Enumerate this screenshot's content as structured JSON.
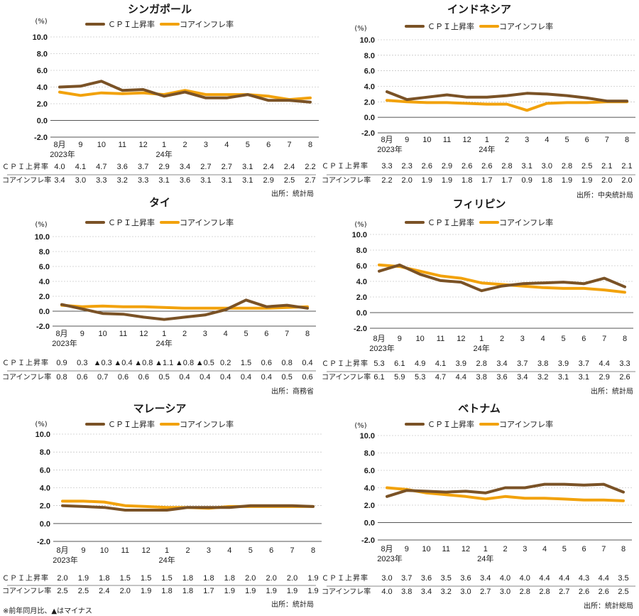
{
  "colors": {
    "cpi": "#7a5226",
    "core": "#f2a20c",
    "grid": "#b0b0b0",
    "axis": "#555555"
  },
  "legend": {
    "cpi": "ＣＰＩ上昇率",
    "core": "コアインフレ率"
  },
  "row_labels": {
    "cpi": "ＣＰＩ上昇率",
    "core": "コアインフレ率"
  },
  "unit": "(%)",
  "footnote": "※前年同月比、▲はマイナス",
  "chart_data": [
    {
      "type": "line",
      "title": "シンガポール",
      "x": [
        "8月",
        "9",
        "10",
        "11",
        "12",
        "1",
        "2",
        "3",
        "4",
        "5",
        "6",
        "7",
        "8"
      ],
      "year_labels": [
        "2023年",
        "",
        "",
        "",
        "",
        "24年",
        "",
        "",
        "",
        "",
        "",
        "",
        ""
      ],
      "ylabel": "(%)",
      "ylim": [
        -2.0,
        10.0
      ],
      "yticks": [
        "10.0",
        "8.0",
        "6.0",
        "4.0",
        "2.0",
        "0.0",
        "-2.0"
      ],
      "grid": true,
      "legend_position": "top",
      "series": [
        {
          "name": "ＣＰＩ上昇率",
          "values": [
            4.0,
            4.1,
            4.7,
            3.6,
            3.7,
            2.9,
            3.4,
            2.7,
            2.7,
            3.1,
            2.4,
            2.4,
            2.2
          ],
          "labels": [
            "4.0",
            "4.1",
            "4.7",
            "3.6",
            "3.7",
            "2.9",
            "3.4",
            "2.7",
            "2.7",
            "3.1",
            "2.4",
            "2.4",
            "2.2"
          ]
        },
        {
          "name": "コアインフレ率",
          "values": [
            3.4,
            3.0,
            3.3,
            3.2,
            3.3,
            3.1,
            3.6,
            3.1,
            3.1,
            3.1,
            2.9,
            2.5,
            2.7
          ],
          "labels": [
            "3.4",
            "3.0",
            "3.3",
            "3.2",
            "3.3",
            "3.1",
            "3.6",
            "3.1",
            "3.1",
            "3.1",
            "2.9",
            "2.5",
            "2.7"
          ]
        }
      ],
      "source": "出所：統計局"
    },
    {
      "type": "line",
      "title": "インドネシア",
      "x": [
        "8月",
        "9",
        "10",
        "11",
        "12",
        "1",
        "2",
        "3",
        "4",
        "5",
        "6",
        "7",
        "8"
      ],
      "year_labels": [
        "2023年",
        "",
        "",
        "",
        "",
        "24年",
        "",
        "",
        "",
        "",
        "",
        "",
        ""
      ],
      "ylabel": "(%)",
      "ylim": [
        -2.0,
        10.0
      ],
      "yticks": [
        "10.0",
        "8.0",
        "6.0",
        "4.0",
        "2.0",
        "0.0",
        "-2.0"
      ],
      "grid": true,
      "legend_position": "top",
      "series": [
        {
          "name": "ＣＰＩ上昇率",
          "values": [
            3.3,
            2.3,
            2.6,
            2.9,
            2.6,
            2.6,
            2.8,
            3.1,
            3.0,
            2.8,
            2.5,
            2.1,
            2.1
          ],
          "labels": [
            "3.3",
            "2.3",
            "2.6",
            "2.9",
            "2.6",
            "2.6",
            "2.8",
            "3.1",
            "3.0",
            "2.8",
            "2.5",
            "2.1",
            "2.1"
          ]
        },
        {
          "name": "コアインフレ率",
          "values": [
            2.2,
            2.0,
            1.9,
            1.9,
            1.8,
            1.7,
            1.7,
            0.9,
            1.8,
            1.9,
            1.9,
            2.0,
            2.0
          ],
          "labels": [
            "2.2",
            "2.0",
            "1.9",
            "1.9",
            "1.8",
            "1.7",
            "1.7",
            "0.9",
            "1.8",
            "1.9",
            "1.9",
            "2.0",
            "2.0"
          ]
        }
      ],
      "source": "出所：中央統計局"
    },
    {
      "type": "line",
      "title": "タイ",
      "x": [
        "8月",
        "9",
        "10",
        "11",
        "12",
        "1",
        "2",
        "3",
        "4",
        "5",
        "6",
        "7",
        "8"
      ],
      "year_labels": [
        "2023年",
        "",
        "",
        "",
        "",
        "24年",
        "",
        "",
        "",
        "",
        "",
        "",
        ""
      ],
      "ylabel": "(%)",
      "ylim": [
        -2.0,
        10.0
      ],
      "yticks": [
        "10.0",
        "8.0",
        "6.0",
        "4.0",
        "2.0",
        "0.0",
        "-2.0"
      ],
      "grid": true,
      "legend_position": "top",
      "series": [
        {
          "name": "ＣＰＩ上昇率",
          "values": [
            0.9,
            0.3,
            -0.3,
            -0.4,
            -0.8,
            -1.1,
            -0.8,
            -0.5,
            0.2,
            1.5,
            0.6,
            0.8,
            0.4
          ],
          "labels": [
            "0.9",
            "0.3",
            "▲0.3",
            "▲0.4",
            "▲0.8",
            "▲1.1",
            "▲0.8",
            "▲0.5",
            "0.2",
            "1.5",
            "0.6",
            "0.8",
            "0.4"
          ]
        },
        {
          "name": "コアインフレ率",
          "values": [
            0.8,
            0.6,
            0.7,
            0.6,
            0.6,
            0.5,
            0.4,
            0.4,
            0.4,
            0.4,
            0.4,
            0.5,
            0.6
          ],
          "labels": [
            "0.8",
            "0.6",
            "0.7",
            "0.6",
            "0.6",
            "0.5",
            "0.4",
            "0.4",
            "0.4",
            "0.4",
            "0.4",
            "0.5",
            "0.6"
          ]
        }
      ],
      "source": "出所：商務省"
    },
    {
      "type": "line",
      "title": "フィリピン",
      "x": [
        "8月",
        "9",
        "10",
        "11",
        "12",
        "1",
        "2",
        "3",
        "4",
        "5",
        "6",
        "7",
        "8"
      ],
      "year_labels": [
        "2023年",
        "",
        "",
        "",
        "",
        "24年",
        "",
        "",
        "",
        "",
        "",
        "",
        ""
      ],
      "ylabel": "(%)",
      "ylim": [
        -2.0,
        10.0
      ],
      "yticks": [
        "10.0",
        "8.0",
        "6.0",
        "4.0",
        "2.0",
        "0.0",
        "-2.0"
      ],
      "grid": true,
      "legend_position": "top",
      "series": [
        {
          "name": "ＣＰＩ上昇率",
          "values": [
            5.3,
            6.1,
            4.9,
            4.1,
            3.9,
            2.8,
            3.4,
            3.7,
            3.8,
            3.9,
            3.7,
            4.4,
            3.3
          ],
          "labels": [
            "5.3",
            "6.1",
            "4.9",
            "4.1",
            "3.9",
            "2.8",
            "3.4",
            "3.7",
            "3.8",
            "3.9",
            "3.7",
            "4.4",
            "3.3"
          ]
        },
        {
          "name": "コアインフレ率",
          "values": [
            6.1,
            5.9,
            5.3,
            4.7,
            4.4,
            3.8,
            3.6,
            3.4,
            3.2,
            3.1,
            3.1,
            2.9,
            2.6
          ],
          "labels": [
            "6.1",
            "5.9",
            "5.3",
            "4.7",
            "4.4",
            "3.8",
            "3.6",
            "3.4",
            "3.2",
            "3.1",
            "3.1",
            "2.9",
            "2.6"
          ]
        }
      ],
      "source": "出所：統計局"
    },
    {
      "type": "line",
      "title": "マレーシア",
      "x": [
        "8月",
        "9",
        "10",
        "11",
        "12",
        "1",
        "2",
        "3",
        "4",
        "5",
        "6",
        "7",
        "8"
      ],
      "year_labels": [
        "2023年",
        "",
        "",
        "",
        "",
        "24年",
        "",
        "",
        "",
        "",
        "",
        "",
        ""
      ],
      "ylabel": "(%)",
      "ylim": [
        -2.0,
        10.0
      ],
      "yticks": [
        "10.0",
        "8.0",
        "6.0",
        "4.0",
        "2.0",
        "0.0",
        "-2.0"
      ],
      "grid": true,
      "legend_position": "top",
      "series": [
        {
          "name": "ＣＰＩ上昇率",
          "values": [
            2.0,
            1.9,
            1.8,
            1.5,
            1.5,
            1.5,
            1.8,
            1.8,
            1.8,
            2.0,
            2.0,
            2.0,
            1.9
          ],
          "labels": [
            "2.0",
            "1.9",
            "1.8",
            "1.5",
            "1.5",
            "1.5",
            "1.8",
            "1.8",
            "1.8",
            "2.0",
            "2.0",
            "2.0",
            "1.9"
          ]
        },
        {
          "name": "コアインフレ率",
          "values": [
            2.5,
            2.5,
            2.4,
            2.0,
            1.9,
            1.8,
            1.8,
            1.7,
            1.9,
            1.9,
            1.9,
            1.9,
            1.9
          ],
          "labels": [
            "2.5",
            "2.5",
            "2.4",
            "2.0",
            "1.9",
            "1.8",
            "1.8",
            "1.7",
            "1.9",
            "1.9",
            "1.9",
            "1.9",
            "1.9"
          ]
        }
      ],
      "source": "出所：統計局"
    },
    {
      "type": "line",
      "title": "ベトナム",
      "x": [
        "8月",
        "9",
        "10",
        "11",
        "12",
        "1",
        "2",
        "3",
        "4",
        "5",
        "6",
        "7",
        "8"
      ],
      "year_labels": [
        "2023年",
        "",
        "",
        "",
        "",
        "24年",
        "",
        "",
        "",
        "",
        "",
        "",
        ""
      ],
      "ylabel": "(%)",
      "ylim": [
        -2.0,
        10.0
      ],
      "yticks": [
        "10.0",
        "8.0",
        "6.0",
        "4.0",
        "2.0",
        "0.0",
        "-2.0"
      ],
      "grid": true,
      "legend_position": "top",
      "series": [
        {
          "name": "ＣＰＩ上昇率",
          "values": [
            3.0,
            3.7,
            3.6,
            3.5,
            3.6,
            3.4,
            4.0,
            4.0,
            4.4,
            4.4,
            4.3,
            4.4,
            3.5
          ],
          "labels": [
            "3.0",
            "3.7",
            "3.6",
            "3.5",
            "3.6",
            "3.4",
            "4.0",
            "4.0",
            "4.4",
            "4.4",
            "4.3",
            "4.4",
            "3.5"
          ]
        },
        {
          "name": "コアインフレ率",
          "values": [
            4.0,
            3.8,
            3.4,
            3.2,
            3.0,
            2.7,
            3.0,
            2.8,
            2.8,
            2.7,
            2.6,
            2.6,
            2.5
          ],
          "labels": [
            "4.0",
            "3.8",
            "3.4",
            "3.2",
            "3.0",
            "2.7",
            "3.0",
            "2.8",
            "2.8",
            "2.7",
            "2.6",
            "2.6",
            "2.5"
          ]
        }
      ],
      "source": "出所：統計総局"
    }
  ]
}
